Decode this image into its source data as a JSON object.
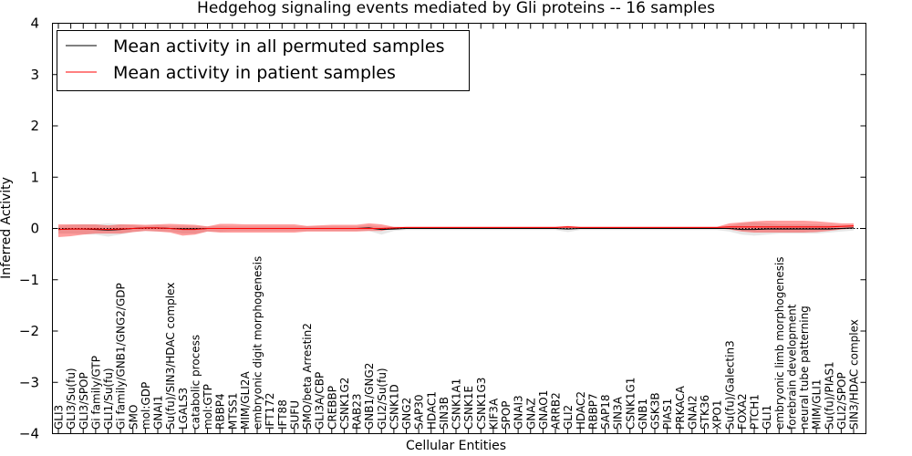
{
  "chart_data": {
    "type": "line",
    "title": "Hedgehog signaling events mediated by Gli proteins -- 16 samples",
    "xlabel": "Cellular Entities",
    "ylabel": "Inferred Activity",
    "ylim": [
      -4,
      4
    ],
    "yticks": [
      -4,
      -3,
      -2,
      -1,
      0,
      1,
      2,
      3,
      4
    ],
    "ytick_labels": [
      "−4",
      "−3",
      "−2",
      "−1",
      "0",
      "1",
      "2",
      "3",
      "4"
    ],
    "grid": false,
    "legend_position": "top-left",
    "categories": [
      "GLI3",
      "GLI3/Su(fu)",
      "GLI3/SPOP",
      "Gi family/GTP",
      "GLI1/Su(fu)",
      "Gi family/GNB1/GNG2/GDP",
      "SMO",
      "mol:GDP",
      "GNAI1",
      "Su(fu)/SIN3/HDAC complex",
      "LGALS3",
      "catabolic process",
      "mol:GTP",
      "RBBP4",
      "MTSS1",
      "MIM/GLI2A",
      "embryonic digit morphogenesis",
      "IFT172",
      "IFT88",
      "SUFU",
      "SMO/beta Arrestin2",
      "GLI3A/CBP",
      "CREBBP",
      "CSNK1G2",
      "RAB23",
      "GNB1/GNG2",
      "GLI2/Su(fu)",
      "CSNK1D",
      "GNG2",
      "SAP30",
      "HDAC1",
      "SIN3B",
      "CSNK1A1",
      "CSNK1E",
      "CSNK1G3",
      "KIF3A",
      "SPOP",
      "GNAI3",
      "GNAZ",
      "GNAO1",
      "ARRB2",
      "GLI2",
      "HDAC2",
      "RBBP7",
      "SAP18",
      "SIN3A",
      "CSNK1G1",
      "GNB1",
      "GSK3B",
      "PIAS1",
      "PRKACA",
      "GNAI2",
      "STK36",
      "XPO1",
      "Su(fu)/Galectin3",
      "FOXA2",
      "PTCH1",
      "GLI1",
      "embryonic limb morphogenesis",
      "forebrain development",
      "neural tube patterning",
      "MIM/GLI1",
      "Su(fu)/PIAS1",
      "GLI2/SPOP",
      "SIN3/HDAC complex"
    ],
    "series": [
      {
        "name": "Mean activity in all permuted samples",
        "color": "#000000",
        "values": [
          -0.02,
          -0.01,
          -0.01,
          -0.02,
          -0.03,
          -0.02,
          0.0,
          0.01,
          0.01,
          0.0,
          -0.01,
          -0.01,
          0.0,
          0.0,
          0.0,
          0.0,
          0.0,
          0.0,
          0.0,
          0.0,
          0.0,
          0.0,
          0.0,
          0.0,
          0.0,
          0.01,
          -0.02,
          -0.01,
          0.0,
          0.0,
          0.0,
          0.0,
          0.0,
          0.0,
          0.0,
          0.0,
          0.0,
          0.0,
          0.0,
          0.0,
          0.0,
          -0.01,
          0.0,
          0.0,
          0.0,
          0.0,
          0.0,
          0.0,
          0.0,
          0.0,
          0.0,
          0.0,
          0.0,
          0.0,
          0.0,
          -0.02,
          -0.02,
          -0.01,
          -0.01,
          -0.01,
          -0.01,
          -0.01,
          -0.01,
          0.0,
          0.01
        ],
        "band_upper": [
          0.05,
          0.07,
          0.08,
          0.08,
          0.1,
          0.08,
          0.06,
          0.05,
          0.06,
          0.05,
          0.05,
          0.05,
          0.04,
          0.05,
          0.04,
          0.04,
          0.04,
          0.04,
          0.04,
          0.04,
          0.04,
          0.04,
          0.04,
          0.04,
          0.04,
          0.06,
          0.03,
          0.03,
          0.02,
          0.02,
          0.02,
          0.02,
          0.02,
          0.02,
          0.02,
          0.02,
          0.02,
          0.02,
          0.02,
          0.02,
          0.02,
          0.02,
          0.02,
          0.02,
          0.02,
          0.02,
          0.02,
          0.02,
          0.02,
          0.02,
          0.02,
          0.02,
          0.02,
          0.02,
          0.05,
          0.1,
          0.12,
          0.1,
          0.08,
          0.08,
          0.08,
          0.08,
          0.07,
          0.06,
          0.06
        ],
        "band_lower": [
          -0.1,
          -0.1,
          -0.11,
          -0.12,
          -0.16,
          -0.12,
          -0.07,
          -0.05,
          -0.06,
          -0.06,
          -0.1,
          -0.1,
          -0.06,
          -0.06,
          -0.05,
          -0.05,
          -0.05,
          -0.05,
          -0.05,
          -0.05,
          -0.05,
          -0.05,
          -0.05,
          -0.05,
          -0.05,
          -0.05,
          -0.12,
          -0.05,
          -0.03,
          -0.03,
          -0.03,
          -0.03,
          -0.03,
          -0.03,
          -0.03,
          -0.03,
          -0.03,
          -0.03,
          -0.03,
          -0.03,
          -0.03,
          -0.07,
          -0.03,
          -0.03,
          -0.03,
          -0.03,
          -0.03,
          -0.03,
          -0.03,
          -0.03,
          -0.03,
          -0.03,
          -0.03,
          -0.03,
          -0.06,
          -0.12,
          -0.14,
          -0.12,
          -0.1,
          -0.1,
          -0.1,
          -0.1,
          -0.08,
          -0.06,
          -0.04
        ]
      },
      {
        "name": "Mean activity in patient samples",
        "color": "#ff0000",
        "values": [
          -0.02,
          -0.01,
          -0.01,
          -0.01,
          -0.02,
          -0.01,
          0.0,
          0.01,
          0.01,
          0.0,
          -0.02,
          -0.02,
          0.0,
          0.0,
          0.0,
          0.0,
          0.0,
          0.0,
          0.0,
          0.0,
          0.0,
          0.0,
          0.0,
          0.0,
          0.0,
          0.0,
          0.0,
          0.01,
          0.02,
          0.02,
          0.02,
          0.02,
          0.02,
          0.02,
          0.02,
          0.02,
          0.02,
          0.02,
          0.02,
          0.02,
          0.02,
          0.03,
          0.02,
          0.02,
          0.02,
          0.02,
          0.02,
          0.02,
          0.02,
          0.02,
          0.02,
          0.02,
          0.02,
          0.02,
          0.03,
          0.03,
          0.03,
          0.03,
          0.03,
          0.03,
          0.03,
          0.03,
          0.03,
          0.04,
          0.05
        ],
        "band_upper": [
          0.08,
          0.08,
          0.08,
          0.08,
          0.06,
          0.08,
          0.08,
          0.07,
          0.08,
          0.09,
          0.08,
          0.07,
          0.04,
          0.09,
          0.09,
          0.08,
          0.08,
          0.08,
          0.08,
          0.08,
          0.05,
          0.06,
          0.07,
          0.07,
          0.07,
          0.1,
          0.08,
          0.03,
          0.03,
          0.03,
          0.03,
          0.03,
          0.03,
          0.03,
          0.03,
          0.03,
          0.03,
          0.03,
          0.03,
          0.03,
          0.03,
          0.05,
          0.03,
          0.03,
          0.03,
          0.03,
          0.03,
          0.03,
          0.03,
          0.03,
          0.03,
          0.03,
          0.03,
          0.03,
          0.1,
          0.12,
          0.14,
          0.15,
          0.15,
          0.15,
          0.15,
          0.14,
          0.12,
          0.1,
          0.1
        ],
        "band_lower": [
          -0.17,
          -0.15,
          -0.12,
          -0.1,
          -0.1,
          -0.1,
          -0.07,
          -0.05,
          -0.06,
          -0.08,
          -0.14,
          -0.12,
          -0.06,
          -0.08,
          -0.08,
          -0.08,
          -0.08,
          -0.08,
          -0.08,
          -0.08,
          -0.06,
          -0.06,
          -0.06,
          -0.06,
          -0.06,
          -0.05,
          -0.05,
          0.0,
          0.01,
          0.01,
          0.01,
          0.01,
          0.01,
          0.01,
          0.01,
          0.01,
          0.01,
          0.01,
          0.01,
          0.01,
          0.01,
          0.01,
          0.01,
          0.01,
          0.01,
          0.01,
          0.01,
          0.01,
          0.01,
          0.01,
          0.01,
          0.01,
          0.01,
          0.01,
          -0.02,
          -0.06,
          -0.08,
          -0.08,
          -0.08,
          -0.08,
          -0.08,
          -0.07,
          -0.05,
          -0.02,
          0.0
        ]
      }
    ]
  }
}
